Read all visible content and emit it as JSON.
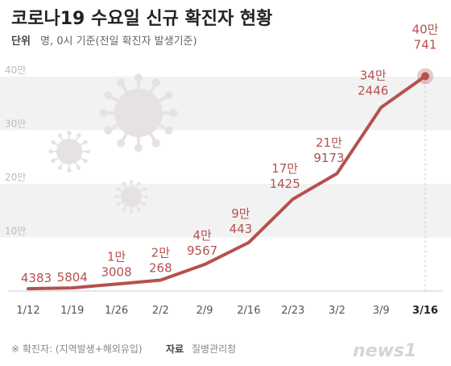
{
  "header": {
    "title": "코로나19 수요일 신규 확진자 현황",
    "unit_label": "단위",
    "unit_text": "명, 0시 기준(전일 확진자 발생기준)"
  },
  "footer": {
    "note": "※ 확진자: (지역발생+해외유입)",
    "source_label": "자료",
    "source": "질병관리청",
    "logo_text": "news1"
  },
  "colors": {
    "line": "#b5514f",
    "label": "#b5514f",
    "band": "#f2f2f2",
    "virus": "#e7e2e2"
  },
  "chart_data": {
    "type": "line",
    "title": "코로나19 수요일 신규 확진자 현황",
    "categories": [
      "1/12",
      "1/19",
      "1/26",
      "2/2",
      "2/9",
      "2/16",
      "2/23",
      "3/2",
      "3/9",
      "3/16"
    ],
    "series": [
      {
        "values": [
          4383,
          5804,
          13008,
          20268,
          49567,
          90443,
          171425,
          219173,
          342446,
          400741
        ]
      }
    ],
    "data_labels": [
      [
        "4383"
      ],
      [
        "5804"
      ],
      [
        "1만",
        "3008"
      ],
      [
        "2만",
        "268"
      ],
      [
        "4만",
        "9567"
      ],
      [
        "9만",
        "443"
      ],
      [
        "17만",
        "1425"
      ],
      [
        "21만",
        "9173"
      ],
      [
        "34만",
        "2446"
      ],
      [
        "40만",
        "741"
      ]
    ],
    "y_ticks": [
      {
        "value": 100000,
        "label": "10만"
      },
      {
        "value": 200000,
        "label": "20만"
      },
      {
        "value": 300000,
        "label": "30만"
      },
      {
        "value": 400000,
        "label": "40만"
      }
    ],
    "ylim": [
      0,
      400000
    ],
    "grid": false,
    "highlight_last": true
  }
}
